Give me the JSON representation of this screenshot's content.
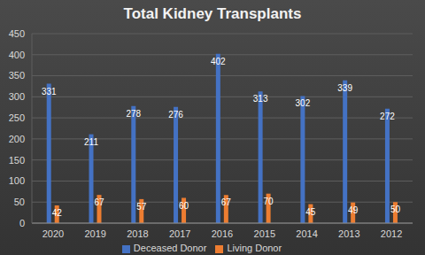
{
  "chart_data": {
    "type": "bar",
    "title": "Total Kidney Transplants",
    "categories": [
      "2020",
      "2019",
      "2018",
      "2017",
      "2016",
      "2015",
      "2014",
      "2013",
      "2012"
    ],
    "series": [
      {
        "name": "Deceased Donor",
        "color": "#4472c4",
        "values": [
          331,
          211,
          278,
          276,
          402,
          313,
          302,
          339,
          272
        ]
      },
      {
        "name": "Living Donor",
        "color": "#ed7d31",
        "values": [
          42,
          67,
          57,
          60,
          67,
          70,
          45,
          49,
          50
        ]
      }
    ],
    "ylim": [
      0,
      450
    ],
    "yticks": [
      0,
      50,
      100,
      150,
      200,
      250,
      300,
      350,
      400,
      450
    ],
    "grid": true,
    "legend": "bottom",
    "data_labels": true
  }
}
